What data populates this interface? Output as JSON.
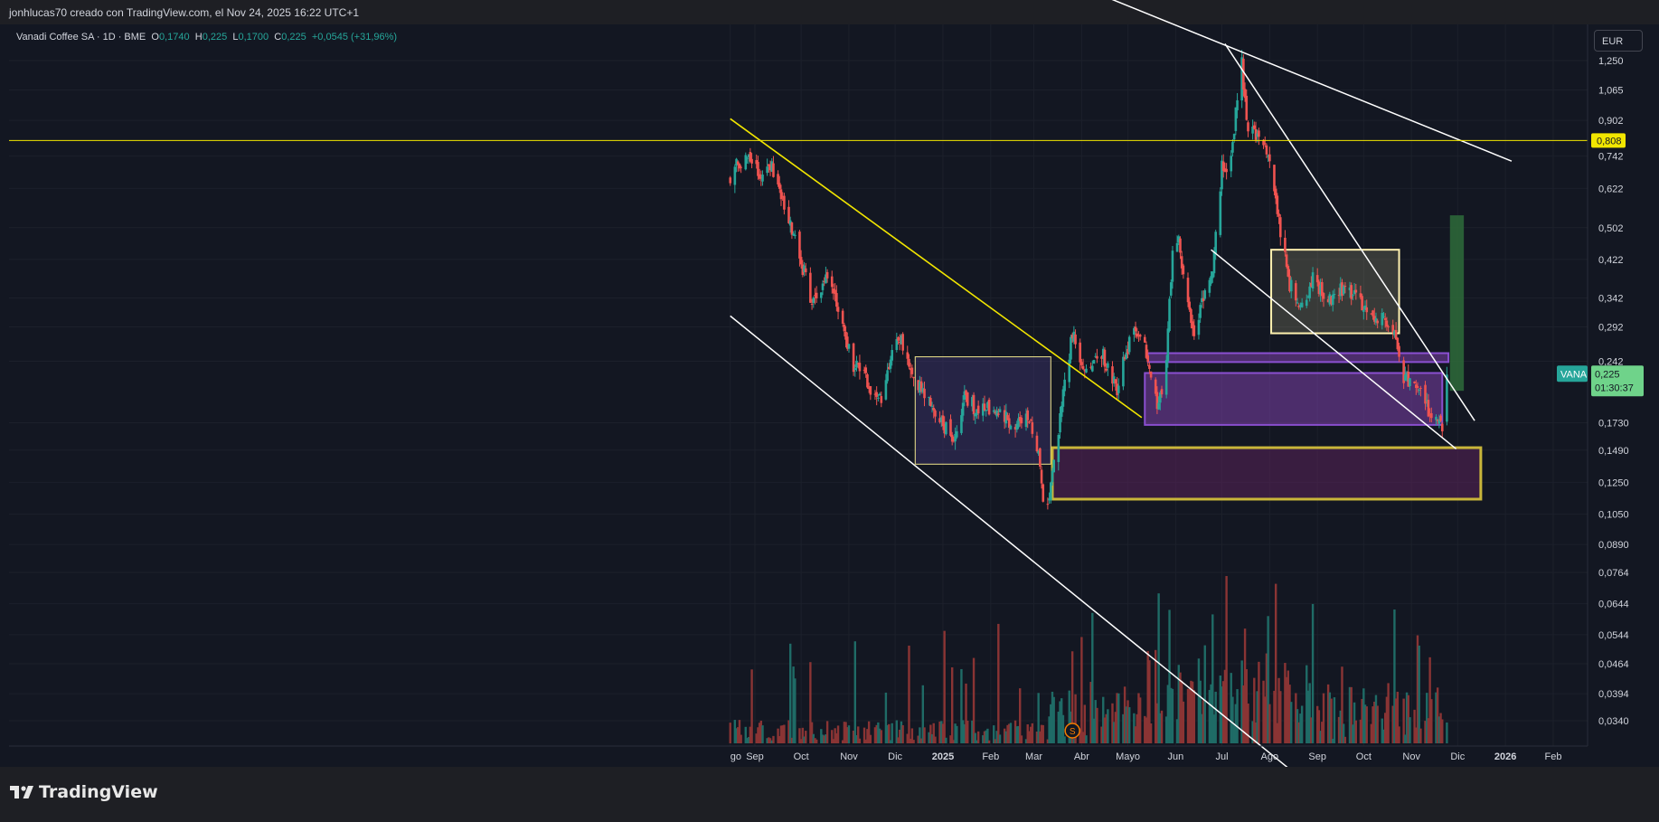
{
  "header": {
    "attribution": "jonhlucas70 creado con TradingView.com, el Nov 24, 2025 16:22 UTC+1"
  },
  "legend": {
    "symbol": "Vanadi Coffee SA · 1D · BME",
    "o_key": "O",
    "o_val": "0,1740",
    "h_key": "H",
    "h_val": "0,225",
    "l_key": "L",
    "l_val": "0,1700",
    "c_key": "C",
    "c_val": "0,225",
    "change": "+0,0545 (+31,96%)"
  },
  "currency": "EUR",
  "footer": {
    "brand": "TradingView"
  },
  "chart_data": {
    "type": "candlestick",
    "symbol": "VANA",
    "scale": "log",
    "y_ticks": [
      "1,250",
      "1,065",
      "0,902",
      "0,742",
      "0,622",
      "0,502",
      "0,422",
      "0,342",
      "0,292",
      "0,242",
      "0,1730",
      "0,1490",
      "0,1250",
      "0,1050",
      "0,0890",
      "0,0764",
      "0,0644",
      "0,0544",
      "0,0464",
      "0,0394",
      "0,0340"
    ],
    "x_ticks": [
      "go",
      "Sep",
      "Oct",
      "Nov",
      "Dic",
      "2025",
      "Feb",
      "Mar",
      "Abr",
      "Mayo",
      "Jun",
      "Jul",
      "Ago",
      "Sep",
      "Oct",
      "Nov",
      "Dic",
      "2026",
      "Feb"
    ],
    "bold_ticks": [
      "2025",
      "2026"
    ],
    "x_range": [
      "2024-08-16",
      "2026-02-28"
    ],
    "last": {
      "label": "VANA",
      "price": "0,225",
      "countdown": "01:30:37"
    },
    "horizontal_line": {
      "value": 0.808,
      "label": "0,808",
      "color": "#f2e600"
    },
    "colors": {
      "up": "#26a69a",
      "down": "#ef5350",
      "trend_white": "#ffffff",
      "trend_yellow": "#f2e600",
      "purple_zone": "#7b3fa8",
      "target_box": "#2e6b3a"
    },
    "events": [
      {
        "date": "2025-03-26",
        "label": "S"
      }
    ],
    "anchors": [
      [
        "2024-08-16",
        0.67
      ],
      [
        "2024-08-25",
        0.74
      ],
      [
        "2024-09-05",
        0.66
      ],
      [
        "2024-09-12",
        0.7
      ],
      [
        "2024-09-20",
        0.58
      ],
      [
        "2024-10-01",
        0.42
      ],
      [
        "2024-10-08",
        0.33
      ],
      [
        "2024-10-16",
        0.38
      ],
      [
        "2024-10-25",
        0.33
      ],
      [
        "2024-11-03",
        0.24
      ],
      [
        "2024-11-12",
        0.22
      ],
      [
        "2024-11-20",
        0.19
      ],
      [
        "2024-11-28",
        0.24
      ],
      [
        "2024-12-03",
        0.28
      ],
      [
        "2024-12-12",
        0.23
      ],
      [
        "2024-12-20",
        0.2
      ],
      [
        "2025-01-01",
        0.172
      ],
      [
        "2025-01-08",
        0.158
      ],
      [
        "2025-01-15",
        0.2
      ],
      [
        "2025-01-25",
        0.183
      ],
      [
        "2025-02-05",
        0.19
      ],
      [
        "2025-02-15",
        0.17
      ],
      [
        "2025-02-25",
        0.176
      ],
      [
        "2025-03-04",
        0.15
      ],
      [
        "2025-03-09",
        0.1
      ],
      [
        "2025-03-13",
        0.13
      ],
      [
        "2025-03-20",
        0.2
      ],
      [
        "2025-03-26",
        0.28
      ],
      [
        "2025-04-04",
        0.23
      ],
      [
        "2025-04-15",
        0.25
      ],
      [
        "2025-04-24",
        0.21
      ],
      [
        "2025-05-05",
        0.3
      ],
      [
        "2025-05-12",
        0.26
      ],
      [
        "2025-05-20",
        0.19
      ],
      [
        "2025-05-25",
        0.21
      ],
      [
        "2025-05-30",
        0.45
      ],
      [
        "2025-06-03",
        0.48
      ],
      [
        "2025-06-08",
        0.33
      ],
      [
        "2025-06-14",
        0.28
      ],
      [
        "2025-06-20",
        0.36
      ],
      [
        "2025-06-25",
        0.4
      ],
      [
        "2025-07-01",
        0.7
      ],
      [
        "2025-07-06",
        0.66
      ],
      [
        "2025-07-10",
        0.95
      ],
      [
        "2025-07-14",
        1.22
      ],
      [
        "2025-07-18",
        0.85
      ],
      [
        "2025-07-25",
        0.84
      ],
      [
        "2025-08-01",
        0.72
      ],
      [
        "2025-08-06",
        0.55
      ],
      [
        "2025-08-13",
        0.38
      ],
      [
        "2025-08-20",
        0.32
      ],
      [
        "2025-08-29",
        0.38
      ],
      [
        "2025-09-08",
        0.33
      ],
      [
        "2025-09-15",
        0.36
      ],
      [
        "2025-09-25",
        0.35
      ],
      [
        "2025-10-05",
        0.31
      ],
      [
        "2025-10-15",
        0.3
      ],
      [
        "2025-10-22",
        0.28
      ],
      [
        "2025-10-27",
        0.22
      ],
      [
        "2025-11-03",
        0.22
      ],
      [
        "2025-11-10",
        0.19
      ],
      [
        "2025-11-17",
        0.175
      ],
      [
        "2025-11-21",
        0.17
      ],
      [
        "2025-11-24",
        0.225
      ]
    ],
    "zones": [
      {
        "from": "2024-12-14",
        "to": "2025-03-12",
        "y0": 0.138,
        "y1": 0.248,
        "color": "#4a3b86"
      },
      {
        "from": "2025-08-02",
        "to": "2025-10-24",
        "y0": 0.282,
        "y1": 0.445,
        "color": "#fff3b0"
      },
      {
        "from": "2025-05-14",
        "to": "2025-11-25",
        "y0": 0.241,
        "y1": 0.253,
        "color": "#7b3fa8"
      },
      {
        "from": "2025-05-12",
        "to": "2025-11-21",
        "y0": 0.171,
        "y1": 0.227,
        "color": "#7b3fa8"
      },
      {
        "from": "2025-03-13",
        "to": "2025-12-16",
        "y0": 0.114,
        "y1": 0.151,
        "color": "#c9b63a"
      },
      {
        "from": "2025-11-26",
        "to": "2025-12-05",
        "y0": 0.206,
        "y1": 0.537,
        "color": "#2e6b3a"
      }
    ],
    "trendlines": [
      {
        "color": "white",
        "p1": [
          "2024-08-16",
          0.31
        ],
        "p2": [
          "2025-09-22",
          0.02
        ]
      },
      {
        "color": "white",
        "p1": [
          "2025-04-20",
          1.75
        ],
        "p2": [
          "2026-01-05",
          0.722
        ]
      },
      {
        "color": "white",
        "p1": [
          "2025-07-03",
          1.37
        ],
        "p2": [
          "2025-12-12",
          0.175
        ]
      },
      {
        "color": "white",
        "p1": [
          "2025-06-24",
          0.445
        ],
        "p2": [
          "2025-11-30",
          0.15
        ]
      },
      {
        "color": "yellow",
        "p1": [
          "2024-08-16",
          0.91
        ],
        "p2": [
          "2025-05-10",
          0.178
        ]
      }
    ]
  }
}
